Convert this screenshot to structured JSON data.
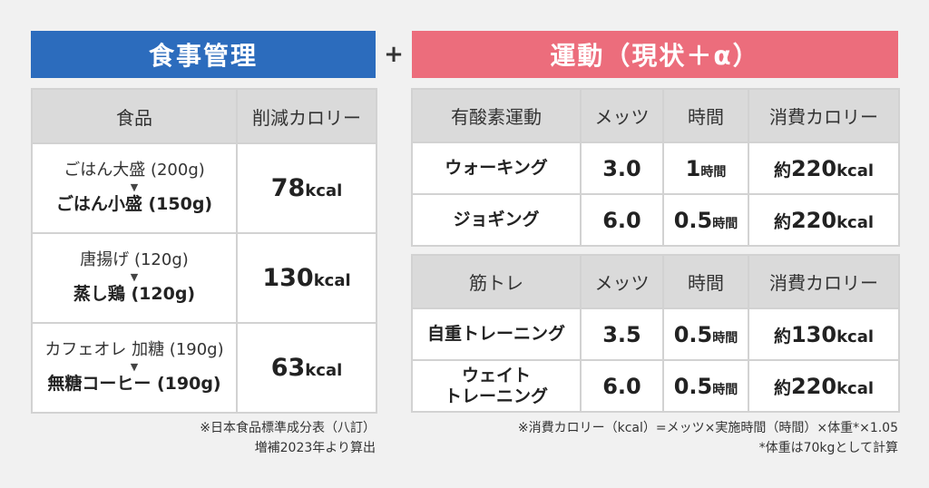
{
  "diet_banner": "食事管理",
  "plus_sign": "+",
  "exercise_banner": "運動（現状＋α）",
  "food_table": {
    "headers": [
      "食品",
      "削減カロリー"
    ],
    "rows": [
      {
        "before": "ごはん大盛 (200g)",
        "arrow": "▼",
        "after": "ごはん小盛 (150g)",
        "kcal": "78",
        "unit": "kcal"
      },
      {
        "before": "唐揚げ (120g)",
        "arrow": "▼",
        "after": "蒸し鶏 (120g)",
        "kcal": "130",
        "unit": "kcal"
      },
      {
        "before": "カフェオレ 加糖 (190g)",
        "arrow": "▼",
        "after": "無糖コーヒー (190g)",
        "kcal": "63",
        "unit": "kcal"
      }
    ]
  },
  "aerobic_table": {
    "headers": [
      "有酸素運動",
      "メッツ",
      "時間",
      "消費カロリー"
    ],
    "rows": [
      {
        "name": "ウォーキング",
        "mets": "3.0",
        "time": "1",
        "time_unit": "時間",
        "cal_prefix": "約",
        "cal": "220",
        "cal_unit": "kcal"
      },
      {
        "name": "ジョギング",
        "mets": "6.0",
        "time": "0.5",
        "time_unit": "時間",
        "cal_prefix": "約",
        "cal": "220",
        "cal_unit": "kcal"
      }
    ]
  },
  "strength_table": {
    "headers": [
      "筋トレ",
      "メッツ",
      "時間",
      "消費カロリー"
    ],
    "rows": [
      {
        "name": "自重トレーニング",
        "name2": "",
        "mets": "3.5",
        "time": "0.5",
        "time_unit": "時間",
        "cal_prefix": "約",
        "cal": "130",
        "cal_unit": "kcal"
      },
      {
        "name": "ウェイト",
        "name2": "トレーニング",
        "mets": "6.0",
        "time": "0.5",
        "time_unit": "時間",
        "cal_prefix": "約",
        "cal": "220",
        "cal_unit": "kcal"
      }
    ]
  },
  "notes_left": [
    "※日本食品標準成分表（八訂）",
    "増補2023年より算出"
  ],
  "notes_right": [
    "※消費カロリー（kcal）=メッツ×実施時間（時間）×体重*×1.05",
    "*体重は70kgとして計算"
  ]
}
